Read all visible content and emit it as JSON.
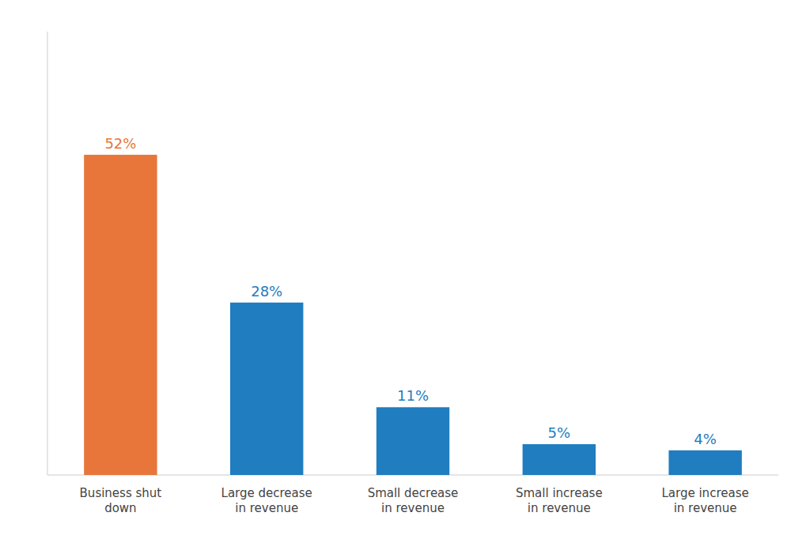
{
  "chart_data": {
    "type": "bar",
    "categories": [
      "Business shut\ndown",
      "Large decrease\nin revenue",
      "Small decrease\nin revenue",
      "Small increase\nin revenue",
      "Large increase\nin revenue"
    ],
    "values": [
      52,
      28,
      11,
      5,
      4
    ],
    "value_labels": [
      "52%",
      "28%",
      "11%",
      "5%",
      "4%"
    ],
    "colors": [
      "#E8763A",
      "#1F7DC0",
      "#1F7DC0",
      "#1F7DC0",
      "#1F7DC0"
    ],
    "ylim": [
      0,
      72
    ],
    "data_labels": true,
    "tick_labels": "x",
    "grid": false
  }
}
